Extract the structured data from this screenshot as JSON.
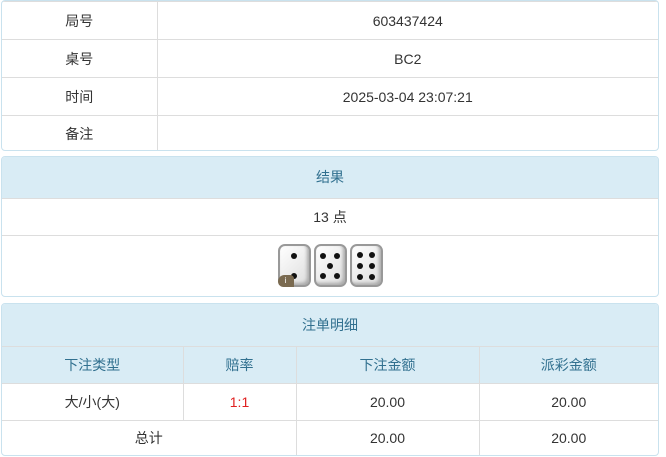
{
  "info": [
    {
      "label": "局号",
      "value": "603437424"
    },
    {
      "label": "桌号",
      "value": "BC2"
    },
    {
      "label": "时间",
      "value": "2025-03-04 23:07:21"
    },
    {
      "label": "备注",
      "value": ""
    }
  ],
  "result": {
    "title": "结果",
    "points": "13 点",
    "dice": [
      2,
      5,
      6
    ],
    "badge": "i"
  },
  "bets": {
    "title": "注单明细",
    "columns": [
      "下注类型",
      "赔率",
      "下注金额",
      "派彩金额"
    ],
    "rows": [
      {
        "type": "大/小(大)",
        "odds": "1:1",
        "amount": "20.00",
        "payout": "20.00"
      }
    ],
    "total": {
      "label": "总计",
      "amount": "20.00",
      "payout": "20.00"
    }
  },
  "colors": {
    "header_bg": "#d9ecf5",
    "header_text": "#31708f",
    "odds": "#e02020"
  }
}
